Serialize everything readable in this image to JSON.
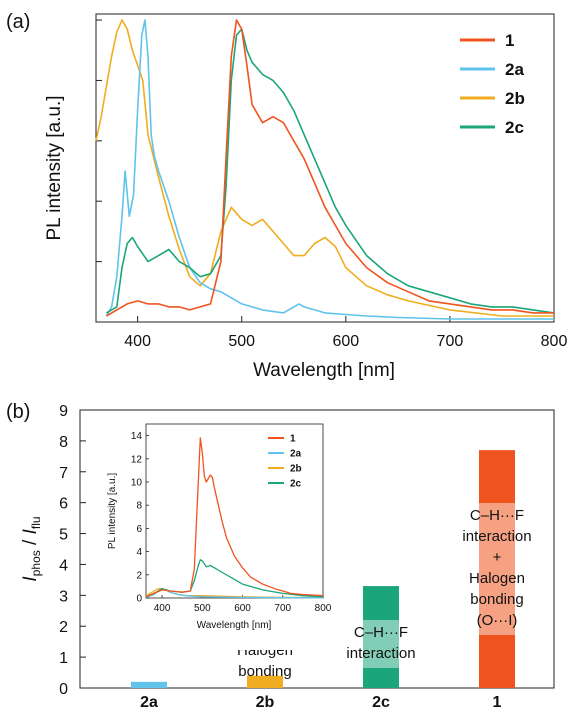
{
  "colors": {
    "1": "#f0541e",
    "2a": "#5fc3ec",
    "2b": "#f0ad1f",
    "2c": "#1aa57a"
  },
  "chart_data": [
    {
      "panel_label": "(a)",
      "type": "line",
      "xlabel": "Wavelength [nm]",
      "ylabel": "PL intensity [a.u.]",
      "xlim": [
        360,
        800
      ],
      "ylim": [
        0,
        1.02
      ],
      "xticks": [
        400,
        500,
        600,
        700,
        800
      ],
      "legend": {
        "position": "top-right",
        "entries": [
          "1",
          "2a",
          "2b",
          "2c"
        ]
      },
      "series": [
        {
          "name": "1",
          "x": [
            370,
            380,
            390,
            400,
            410,
            420,
            430,
            440,
            450,
            460,
            470,
            480,
            485,
            490,
            495,
            500,
            505,
            510,
            520,
            530,
            540,
            550,
            560,
            570,
            580,
            590,
            600,
            620,
            640,
            660,
            680,
            700,
            720,
            740,
            760,
            780,
            800
          ],
          "y": [
            0.02,
            0.04,
            0.06,
            0.07,
            0.06,
            0.06,
            0.05,
            0.05,
            0.04,
            0.05,
            0.06,
            0.2,
            0.55,
            0.88,
            1.0,
            0.97,
            0.85,
            0.72,
            0.66,
            0.68,
            0.66,
            0.6,
            0.54,
            0.46,
            0.38,
            0.32,
            0.26,
            0.18,
            0.13,
            0.1,
            0.07,
            0.06,
            0.05,
            0.04,
            0.04,
            0.03,
            0.03
          ]
        },
        {
          "name": "2a",
          "x": [
            370,
            375,
            380,
            385,
            388,
            392,
            396,
            400,
            404,
            407,
            410,
            413,
            416,
            420,
            430,
            440,
            450,
            460,
            470,
            480,
            490,
            500,
            510,
            520,
            530,
            540,
            550,
            555,
            560,
            570,
            580,
            600,
            620,
            650,
            700,
            750,
            800
          ],
          "y": [
            0.02,
            0.05,
            0.15,
            0.35,
            0.5,
            0.35,
            0.42,
            0.7,
            0.95,
            1.0,
            0.88,
            0.62,
            0.55,
            0.5,
            0.4,
            0.28,
            0.18,
            0.13,
            0.11,
            0.1,
            0.08,
            0.06,
            0.05,
            0.04,
            0.035,
            0.03,
            0.05,
            0.06,
            0.05,
            0.04,
            0.03,
            0.025,
            0.02,
            0.015,
            0.01,
            0.01,
            0.01
          ]
        },
        {
          "name": "2b",
          "x": [
            360,
            365,
            370,
            375,
            380,
            385,
            390,
            395,
            400,
            405,
            410,
            420,
            430,
            440,
            450,
            460,
            470,
            480,
            490,
            500,
            510,
            520,
            530,
            540,
            550,
            560,
            570,
            580,
            590,
            600,
            620,
            640,
            660,
            700,
            750,
            800
          ],
          "y": [
            0.6,
            0.68,
            0.78,
            0.88,
            0.96,
            1.0,
            0.97,
            0.9,
            0.85,
            0.8,
            0.62,
            0.48,
            0.35,
            0.24,
            0.15,
            0.12,
            0.16,
            0.3,
            0.38,
            0.34,
            0.32,
            0.34,
            0.3,
            0.26,
            0.22,
            0.22,
            0.26,
            0.28,
            0.25,
            0.18,
            0.12,
            0.09,
            0.07,
            0.04,
            0.02,
            0.02
          ]
        },
        {
          "name": "2c",
          "x": [
            370,
            380,
            385,
            390,
            395,
            400,
            410,
            420,
            430,
            440,
            450,
            460,
            470,
            480,
            485,
            490,
            495,
            500,
            505,
            510,
            520,
            530,
            540,
            550,
            560,
            570,
            580,
            590,
            600,
            620,
            640,
            660,
            680,
            700,
            720,
            740,
            760,
            780,
            800
          ],
          "y": [
            0.03,
            0.05,
            0.18,
            0.26,
            0.28,
            0.25,
            0.2,
            0.22,
            0.24,
            0.2,
            0.18,
            0.15,
            0.16,
            0.22,
            0.45,
            0.8,
            0.95,
            0.97,
            0.9,
            0.86,
            0.82,
            0.8,
            0.76,
            0.7,
            0.62,
            0.54,
            0.46,
            0.38,
            0.32,
            0.22,
            0.16,
            0.12,
            0.1,
            0.08,
            0.06,
            0.05,
            0.05,
            0.04,
            0.03
          ]
        }
      ]
    },
    {
      "panel_label": "(b)",
      "type": "bar",
      "ylabel_main": "I",
      "ylabel_sub1": "phos",
      "ylabel_sep": " / ",
      "ylabel_sub2": "flu",
      "ylim": [
        0,
        9
      ],
      "yticks": [
        0,
        1,
        2,
        3,
        4,
        5,
        6,
        7,
        8,
        9
      ],
      "categories": [
        "2a",
        "2b",
        "2c",
        "1"
      ],
      "values": [
        0.2,
        0.4,
        3.3,
        7.7
      ],
      "annotations": [
        {
          "category": "2b",
          "lines": [
            "Halogen",
            "bonding"
          ]
        },
        {
          "category": "2c",
          "lines": [
            "C–H···F",
            "interaction"
          ]
        },
        {
          "category": "1",
          "lines": [
            "C–H···F",
            "interaction",
            "+",
            "Halogen",
            "bonding",
            "(O···I)"
          ]
        }
      ]
    },
    {
      "panel_label": "",
      "type": "line",
      "inset": true,
      "xlabel": "Wavelength [nm]",
      "ylabel": "PL intensity [a.u.]",
      "xlim": [
        360,
        800
      ],
      "ylim": [
        0,
        15
      ],
      "xticks": [
        400,
        500,
        600,
        700,
        800
      ],
      "yticks": [
        0,
        2,
        4,
        6,
        8,
        10,
        12,
        14
      ],
      "legend": {
        "position": "top-right",
        "entries": [
          "1",
          "2a",
          "2b",
          "2c"
        ]
      },
      "series": [
        {
          "name": "1",
          "x": [
            360,
            380,
            400,
            420,
            450,
            470,
            480,
            490,
            495,
            500,
            505,
            510,
            520,
            525,
            530,
            540,
            550,
            560,
            580,
            600,
            620,
            650,
            680,
            700,
            720,
            750,
            800
          ],
          "y": [
            0.1,
            0.4,
            0.7,
            0.6,
            0.5,
            0.6,
            2.5,
            10.0,
            13.8,
            12.5,
            10.5,
            10.0,
            10.6,
            10.4,
            9.5,
            8.0,
            6.5,
            5.2,
            3.6,
            2.6,
            1.8,
            1.2,
            0.8,
            0.6,
            0.4,
            0.3,
            0.2
          ]
        },
        {
          "name": "2a",
          "x": [
            360,
            380,
            390,
            400,
            410,
            420,
            440,
            460,
            480,
            500,
            550,
            600,
            700,
            800
          ],
          "y": [
            0.05,
            0.3,
            0.6,
            0.8,
            0.7,
            0.5,
            0.3,
            0.2,
            0.15,
            0.1,
            0.08,
            0.05,
            0.03,
            0.02
          ]
        },
        {
          "name": "2b",
          "x": [
            360,
            380,
            390,
            400,
            410,
            420,
            440,
            460,
            480,
            500,
            550,
            600,
            700,
            800
          ],
          "y": [
            0.2,
            0.6,
            0.8,
            0.8,
            0.7,
            0.5,
            0.3,
            0.2,
            0.2,
            0.2,
            0.15,
            0.1,
            0.05,
            0.03
          ]
        },
        {
          "name": "2c",
          "x": [
            360,
            380,
            400,
            420,
            450,
            470,
            480,
            490,
            495,
            500,
            510,
            520,
            530,
            550,
            580,
            600,
            650,
            700,
            750,
            800
          ],
          "y": [
            0.1,
            0.4,
            0.8,
            0.6,
            0.5,
            0.6,
            1.5,
            2.8,
            3.3,
            3.2,
            2.7,
            2.8,
            2.6,
            2.2,
            1.6,
            1.2,
            0.7,
            0.4,
            0.2,
            0.1
          ]
        }
      ]
    }
  ]
}
